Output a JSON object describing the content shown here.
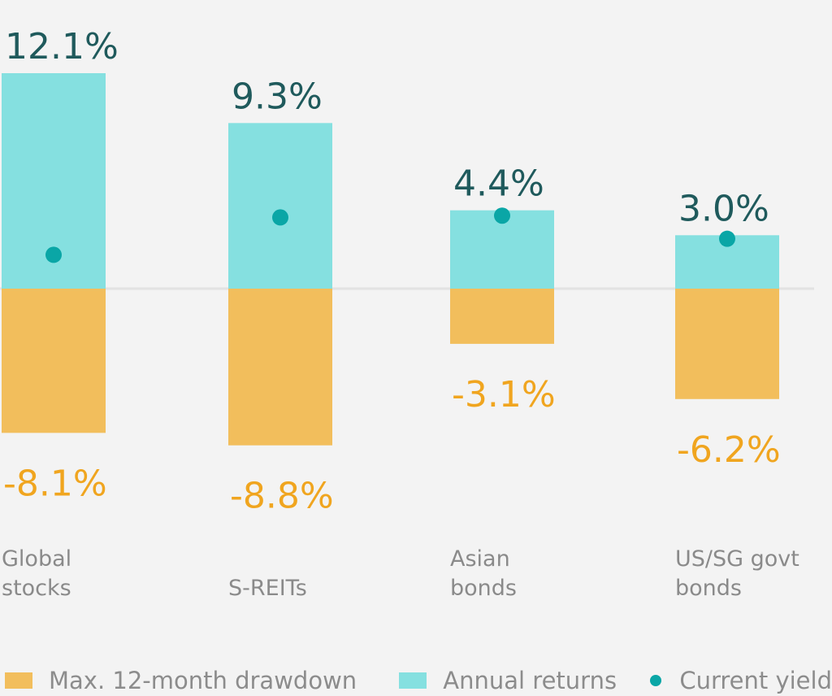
{
  "chart_data": {
    "type": "bar",
    "categories": [
      "Global\nstocks",
      "S-REITs",
      "Asian\nbonds",
      "US/SG govt\nbonds"
    ],
    "series": [
      {
        "name": "Max. 12-month drawdown",
        "values": [
          -8.1,
          -8.8,
          -3.1,
          -6.2
        ],
        "color": "#f2be5c",
        "labels": [
          "-8.1%",
          "-8.8%",
          "-3.1%",
          "-6.2%"
        ]
      },
      {
        "name": "Annual returns",
        "values": [
          12.1,
          9.3,
          4.4,
          3.0
        ],
        "color": "#85e0e0",
        "labels": [
          "12.1%",
          "9.3%",
          "4.4%",
          "3.0%"
        ]
      },
      {
        "name": "Current yield",
        "values": [
          1.9,
          4.0,
          4.1,
          2.8
        ],
        "color": "#0aa6a6"
      }
    ],
    "stacked": false,
    "grid": false,
    "legend_position": "bottom-left"
  },
  "colors": {
    "positive_label": "#1f5a5c",
    "negative_label": "#f0a51f",
    "baseline": "#e2e2e2"
  }
}
